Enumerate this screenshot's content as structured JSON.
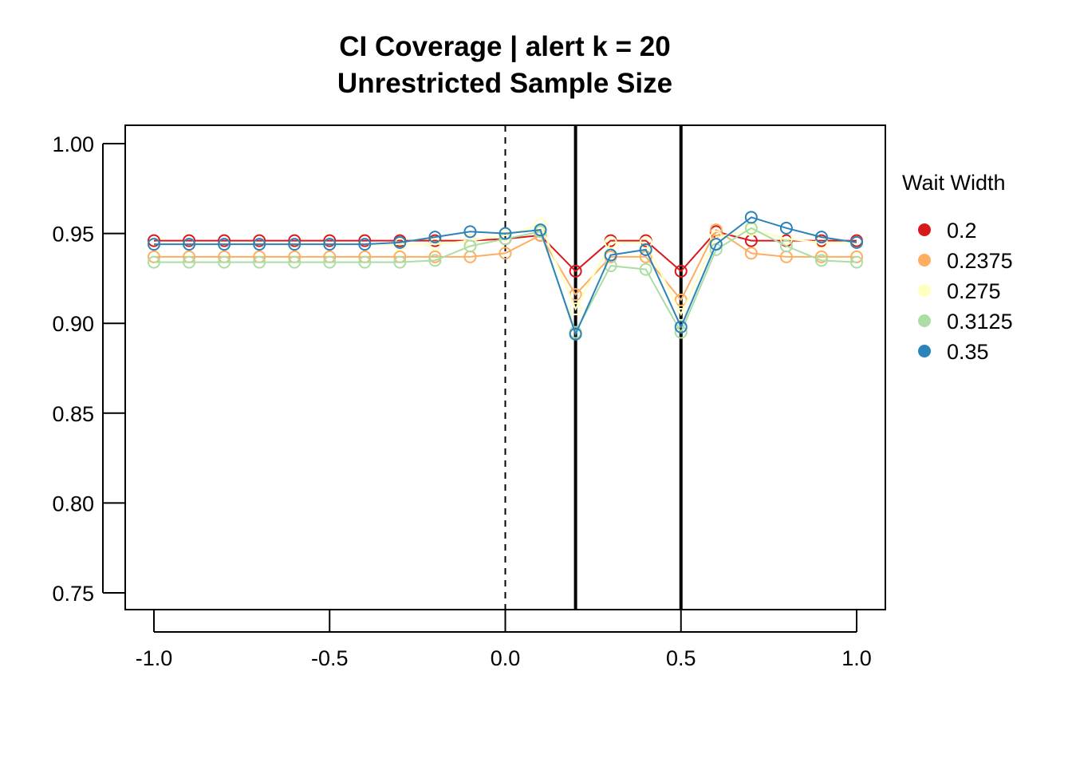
{
  "chart_data": {
    "type": "line",
    "title": "CI Coverage | alert k = 20",
    "subtitle": "Unrestricted Sample Size",
    "xlabel": "",
    "ylabel": "",
    "xlim": [
      -1.0,
      1.0
    ],
    "ylim": [
      0.75,
      1.0
    ],
    "x_ticks": [
      "-1.0",
      "-0.5",
      "0.0",
      "0.5",
      "1.0"
    ],
    "y_ticks": [
      "0.75",
      "0.80",
      "0.85",
      "0.90",
      "0.95",
      "1.00"
    ],
    "grid": false,
    "reference_lines": [
      {
        "x": 0.0,
        "style": "dashed"
      },
      {
        "x": 0.2,
        "style": "solid"
      },
      {
        "x": 0.5,
        "style": "solid"
      }
    ],
    "legend": {
      "title": "Wait Width",
      "position": "right"
    },
    "x": [
      -1.0,
      -0.9,
      -0.8,
      -0.7,
      -0.6,
      -0.5,
      -0.4,
      -0.3,
      -0.2,
      -0.1,
      0.0,
      0.1,
      0.2,
      0.3,
      0.4,
      0.5,
      0.6,
      0.7,
      0.8,
      0.9,
      1.0
    ],
    "series": [
      {
        "name": "0.2",
        "color": "#d7191c",
        "values": [
          0.946,
          0.946,
          0.946,
          0.946,
          0.946,
          0.946,
          0.946,
          0.946,
          0.946,
          0.946,
          0.947,
          0.949,
          0.929,
          0.946,
          0.946,
          0.929,
          0.951,
          0.946,
          0.946,
          0.946,
          0.946
        ]
      },
      {
        "name": "0.2375",
        "color": "#fdae61",
        "values": [
          0.937,
          0.937,
          0.937,
          0.937,
          0.937,
          0.937,
          0.937,
          0.937,
          0.937,
          0.937,
          0.939,
          0.949,
          0.916,
          0.937,
          0.937,
          0.913,
          0.952,
          0.939,
          0.937,
          0.937,
          0.937
        ]
      },
      {
        "name": "0.275",
        "color": "#ffffbf",
        "values": [
          0.944,
          0.944,
          0.944,
          0.944,
          0.944,
          0.944,
          0.944,
          0.944,
          0.944,
          0.946,
          0.949,
          0.955,
          0.908,
          0.945,
          0.945,
          0.905,
          0.948,
          0.952,
          0.947,
          0.945,
          0.945
        ]
      },
      {
        "name": "0.3125",
        "color": "#abdda4",
        "values": [
          0.934,
          0.934,
          0.934,
          0.934,
          0.934,
          0.934,
          0.934,
          0.934,
          0.935,
          0.943,
          0.947,
          0.951,
          0.895,
          0.932,
          0.93,
          0.895,
          0.941,
          0.953,
          0.943,
          0.935,
          0.934
        ]
      },
      {
        "name": "0.35",
        "color": "#2b83ba",
        "values": [
          0.944,
          0.944,
          0.944,
          0.944,
          0.944,
          0.944,
          0.944,
          0.945,
          0.948,
          0.951,
          0.95,
          0.952,
          0.894,
          0.938,
          0.941,
          0.898,
          0.944,
          0.959,
          0.953,
          0.948,
          0.945
        ]
      }
    ]
  }
}
